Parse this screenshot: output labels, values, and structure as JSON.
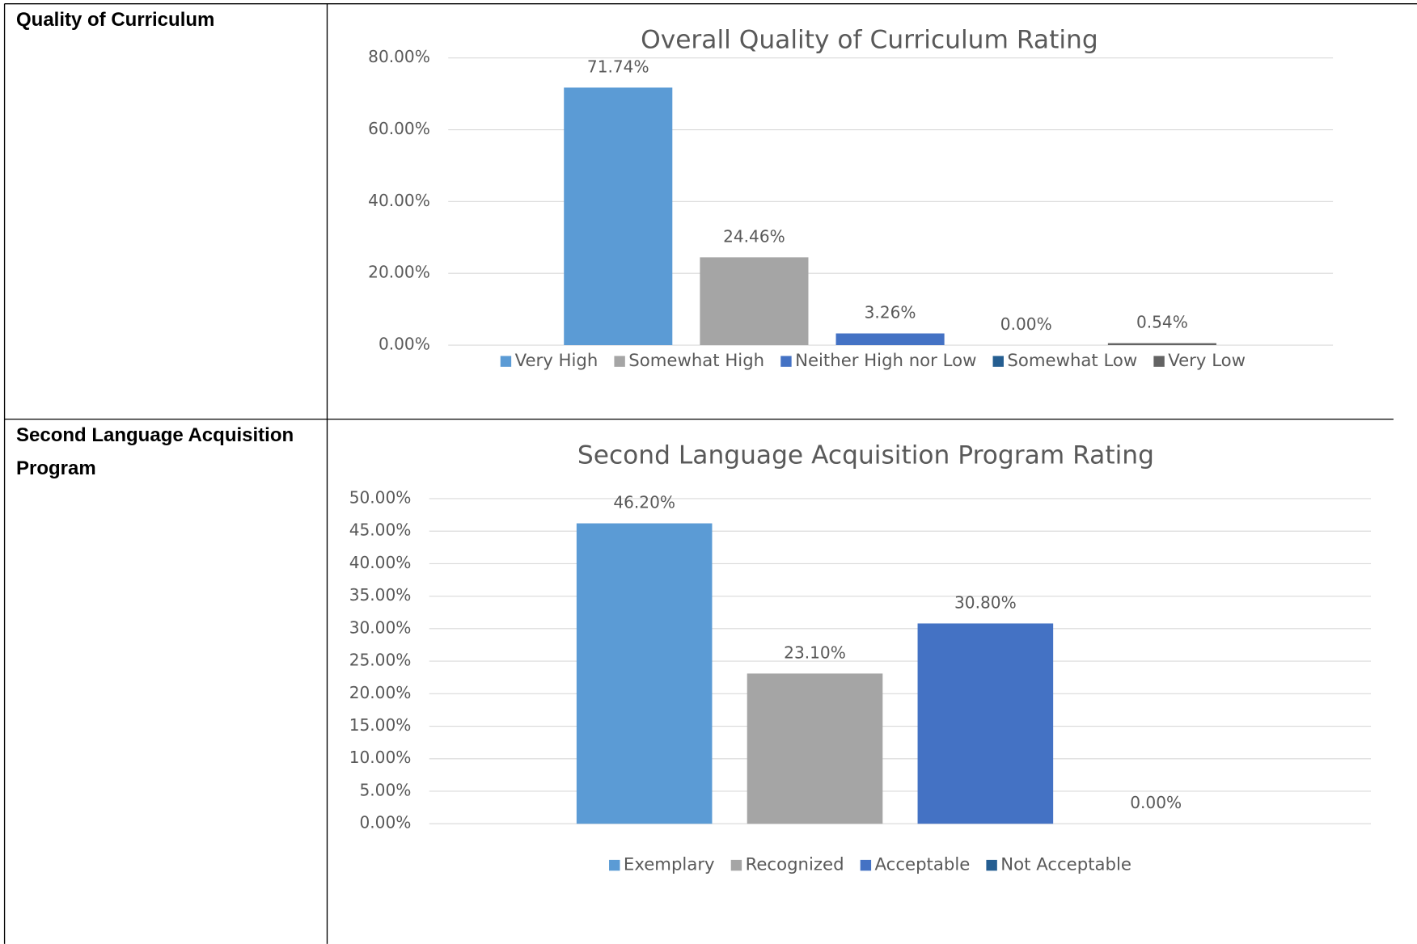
{
  "table": {
    "rows": [
      {
        "label": "Quality of Curriculum"
      },
      {
        "label": "Second Language Acquisition Program"
      }
    ]
  },
  "chart_data": [
    {
      "type": "bar",
      "title": "Overall Quality of Curriculum Rating",
      "categories": [
        "Very High",
        "Somewhat High",
        "Neither High nor Low",
        "Somewhat Low",
        "Very Low"
      ],
      "values": [
        71.74,
        24.46,
        3.26,
        0,
        0.54
      ],
      "value_labels": [
        "71.74%",
        "24.46%",
        "3.26%",
        "0.00%",
        "0.54%"
      ],
      "colors": [
        "#5b9bd5",
        "#a5a5a5",
        "#4472c4",
        "#255e91",
        "#636363"
      ],
      "ylim": [
        0,
        80
      ],
      "yticks": [
        {
          "value": 0,
          "label": "0.00%"
        },
        {
          "value": 20,
          "label": "20.00%"
        },
        {
          "value": 40,
          "label": "40.00%"
        },
        {
          "value": 60,
          "label": "60.00%"
        },
        {
          "value": 80,
          "label": "80.00%"
        }
      ],
      "grid": true,
      "legend": "bottom"
    },
    {
      "type": "bar",
      "title": "Second Language Acquisition Program Rating",
      "categories": [
        "Exemplary",
        "Recognized",
        "Acceptable",
        "Not Acceptable"
      ],
      "values": [
        46.2,
        23.1,
        30.8,
        0
      ],
      "value_labels": [
        "46.20%",
        "23.10%",
        "30.80%",
        "0.00%"
      ],
      "colors": [
        "#5b9bd5",
        "#a5a5a5",
        "#4472c4",
        "#255e91"
      ],
      "ylim": [
        0,
        50
      ],
      "yticks": [
        {
          "value": 0,
          "label": "0.00%"
        },
        {
          "value": 5,
          "label": "5.00%"
        },
        {
          "value": 10,
          "label": "10.00%"
        },
        {
          "value": 15,
          "label": "15.00%"
        },
        {
          "value": 20,
          "label": "20.00%"
        },
        {
          "value": 25,
          "label": "25.00%"
        },
        {
          "value": 30,
          "label": "30.00%"
        },
        {
          "value": 35,
          "label": "35.00%"
        },
        {
          "value": 40,
          "label": "40.00%"
        },
        {
          "value": 45,
          "label": "45.00%"
        },
        {
          "value": 50,
          "label": "50.00%"
        }
      ],
      "grid": true,
      "legend": "bottom"
    }
  ]
}
